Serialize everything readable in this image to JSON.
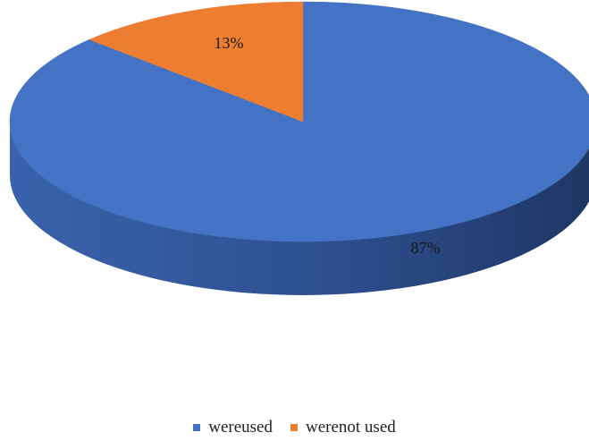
{
  "chart_data": {
    "type": "pie",
    "style": "3d",
    "categories": [
      "wereused",
      "werenot used"
    ],
    "values": [
      87,
      13
    ],
    "data_labels": [
      "87%",
      "13%"
    ],
    "colors": [
      "#4472C4",
      "#ED7D31"
    ],
    "legend_position": "bottom"
  },
  "legend": {
    "items": [
      {
        "label": "wereused",
        "color": "#4472C4"
      },
      {
        "label": "werenot used",
        "color": "#ED7D31"
      }
    ]
  }
}
